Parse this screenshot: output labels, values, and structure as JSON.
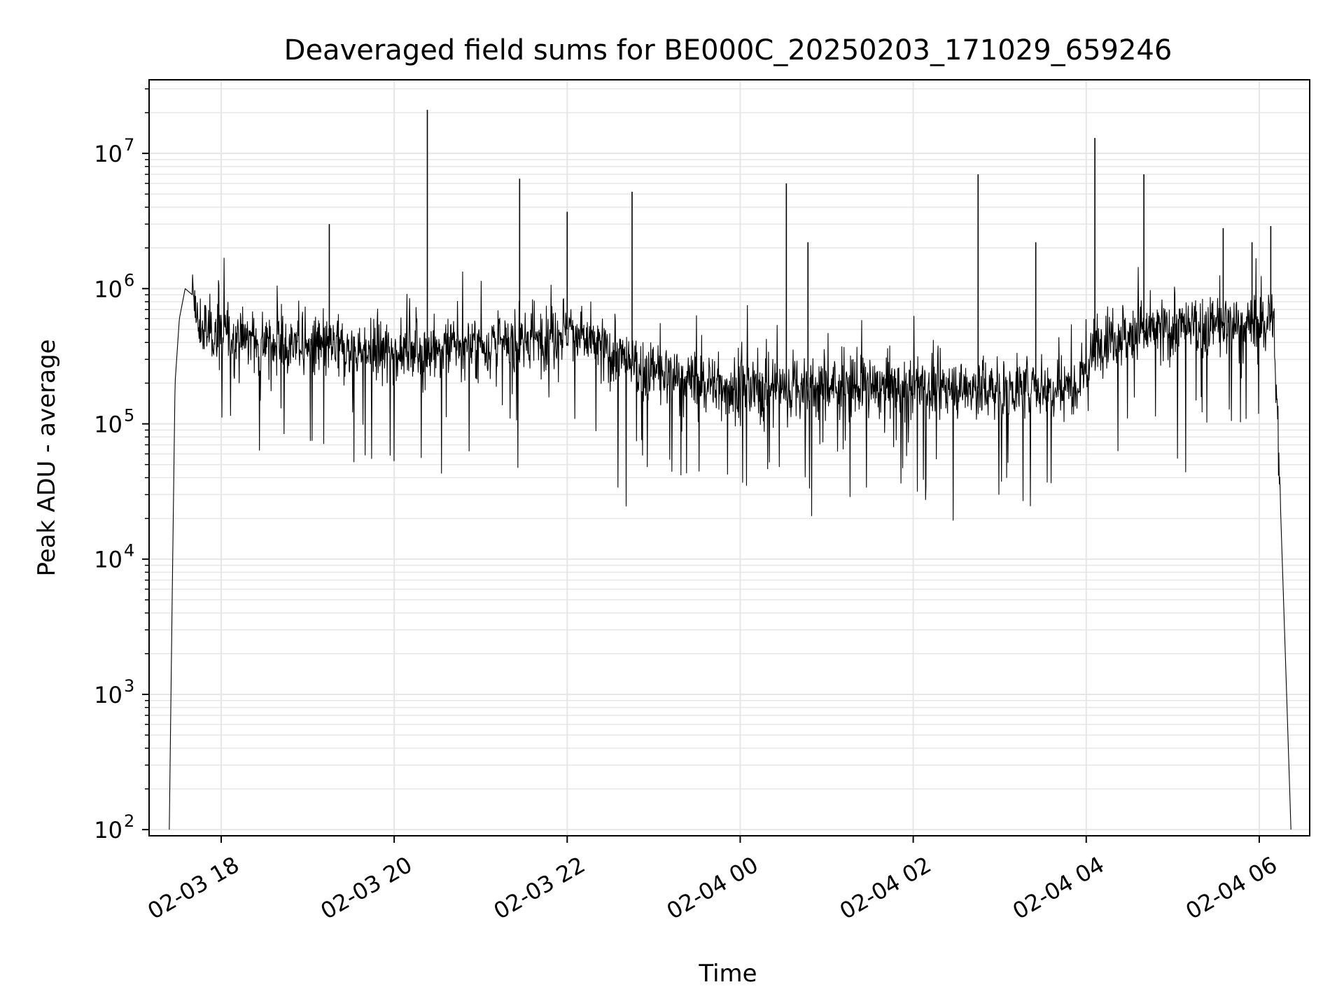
{
  "chart_data": {
    "type": "line",
    "title": "Deaveraged field sums for BE000C_20250203_171029_659246",
    "xlabel": "Time",
    "ylabel": "Peak ADU - average",
    "yscale": "log",
    "ylim": [
      90,
      35000000
    ],
    "xlim": [
      "2025-02-03 17:10",
      "2025-02-04 06:35"
    ],
    "grid": true,
    "line_color": "#000000",
    "grid_color": "#e6e6e6",
    "x_ticks": [
      {
        "value": "2025-02-03 18:00",
        "label": "02-03 18"
      },
      {
        "value": "2025-02-03 20:00",
        "label": "02-03 20"
      },
      {
        "value": "2025-02-03 22:00",
        "label": "02-03 22"
      },
      {
        "value": "2025-02-04 00:00",
        "label": "02-04 00"
      },
      {
        "value": "2025-02-04 02:00",
        "label": "02-04 02"
      },
      {
        "value": "2025-02-04 04:00",
        "label": "02-04 04"
      },
      {
        "value": "2025-02-04 06:00",
        "label": "02-04 06"
      }
    ],
    "y_ticks": [
      {
        "value": 100,
        "base": "10",
        "exp": "2"
      },
      {
        "value": 1000,
        "base": "10",
        "exp": "3"
      },
      {
        "value": 10000,
        "base": "10",
        "exp": "4"
      },
      {
        "value": 100000,
        "base": "10",
        "exp": "5"
      },
      {
        "value": 1000000,
        "base": "10",
        "exp": "6"
      },
      {
        "value": 10000000,
        "base": "10",
        "exp": "7"
      }
    ],
    "series": [
      {
        "x": [
          "2025-02-03 17:24",
          "2025-02-03 17:26",
          "2025-02-03 17:28",
          "2025-02-03 17:31",
          "2025-02-03 17:35",
          "2025-02-03 17:40",
          "2025-02-03 17:44",
          "2025-02-03 18:30",
          "2025-02-03 19:30",
          "2025-02-03 20:30",
          "2025-02-03 21:30",
          "2025-02-03 22:00",
          "2025-02-03 22:50",
          "2025-02-04 00:00",
          "2025-02-04 01:00",
          "2025-02-04 02:00",
          "2025-02-04 03:00",
          "2025-02-04 03:55",
          "2025-02-04 04:10",
          "2025-02-04 05:00",
          "2025-02-04 06:00",
          "2025-02-04 06:10",
          "2025-02-04 06:15",
          "2025-02-04 06:19",
          "2025-02-04 06:22"
        ],
        "y": [
          100,
          5000,
          200000,
          600000,
          1000000,
          900000,
          500000,
          400000,
          350000,
          350000,
          400000,
          500000,
          250000,
          180000,
          190000,
          190000,
          180000,
          200000,
          450000,
          500000,
          550000,
          600000,
          20000,
          1000,
          100
        ]
      }
    ],
    "spikes": [
      {
        "x": "2025-02-03 19:15",
        "y": 3000000
      },
      {
        "x": "2025-02-03 20:23",
        "y": 21000000
      },
      {
        "x": "2025-02-03 21:27",
        "y": 6500000
      },
      {
        "x": "2025-02-03 22:00",
        "y": 3700000
      },
      {
        "x": "2025-02-03 22:45",
        "y": 5200000
      },
      {
        "x": "2025-02-04 00:32",
        "y": 6000000
      },
      {
        "x": "2025-02-04 00:47",
        "y": 2200000
      },
      {
        "x": "2025-02-04 02:45",
        "y": 7000000
      },
      {
        "x": "2025-02-04 03:25",
        "y": 2200000
      },
      {
        "x": "2025-02-04 04:06",
        "y": 13000000
      },
      {
        "x": "2025-02-04 04:40",
        "y": 7000000
      },
      {
        "x": "2025-02-04 05:35",
        "y": 2800000
      },
      {
        "x": "2025-02-04 05:55",
        "y": 2200000
      },
      {
        "x": "2025-02-04 06:08",
        "y": 2900000
      }
    ]
  }
}
